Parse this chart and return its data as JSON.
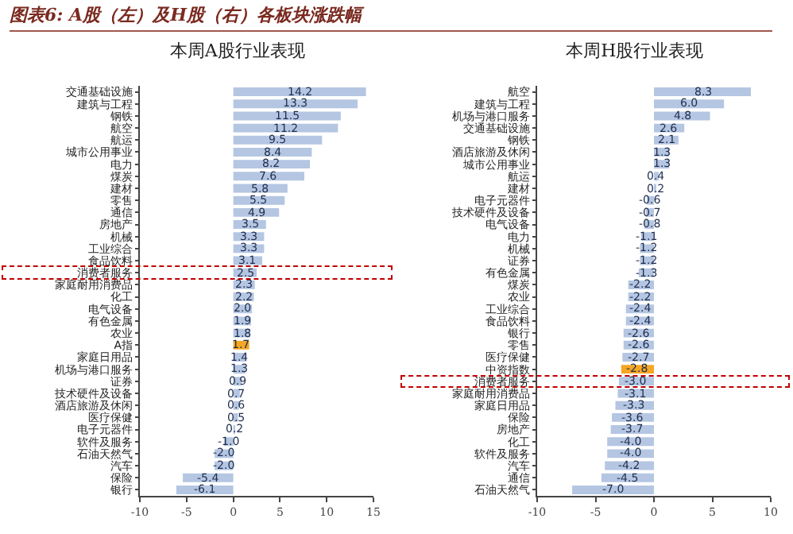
{
  "chart_data": [
    {
      "type": "bar",
      "orientation": "horizontal",
      "title": "本周A股行业表现",
      "annotations": [
        "图表6: A股（左）及H股（右）各板块涨跌幅"
      ],
      "categories": [
        "交通基础设施",
        "建筑与工程",
        "钢铁",
        "航空",
        "航运",
        "城市公用事业",
        "电力",
        "煤炭",
        "建材",
        "零售",
        "通信",
        "房地产",
        "机械",
        "工业综合",
        "食品饮料",
        "消费者服务",
        "家庭耐用消费品",
        "化工",
        "电气设备",
        "有色金属",
        "农业",
        "A指",
        "家庭日用品",
        "机场与港口服务",
        "证券",
        "技术硬件及设备",
        "酒店旅游及休闲",
        "医疗保健",
        "电子元器件",
        "软件及服务",
        "石油天然气",
        "汽车",
        "保险",
        "银行"
      ],
      "values": [
        14.2,
        13.3,
        11.5,
        11.2,
        9.5,
        8.4,
        8.2,
        7.6,
        5.8,
        5.5,
        4.9,
        3.5,
        3.3,
        3.3,
        3.1,
        2.5,
        2.3,
        2.2,
        2.0,
        1.9,
        1.8,
        1.7,
        1.4,
        1.3,
        0.9,
        0.7,
        0.6,
        0.5,
        0.2,
        -1.0,
        -2.0,
        -2.0,
        -5.4,
        -6.1
      ],
      "value_labels": [
        "14.2",
        "13.3",
        "11.5",
        "11.2",
        "9.5",
        "8.4",
        "8.2",
        "7.6",
        "5.8",
        "5.5",
        "4.9",
        "3.5",
        "3.3",
        "3.3",
        "3.1",
        "2.5",
        "2.3",
        "2.2",
        "2.0",
        "1.9",
        "1.8",
        "1.7",
        "1.4",
        "1.3",
        "0.9",
        "0.7",
        "0.6",
        "0.5",
        "0.2",
        "-1.0",
        "-2.0",
        "-2.0",
        "-5.4",
        "-6.1"
      ],
      "colors": [
        "#b4c6e2",
        "#b4c6e2",
        "#b4c6e2",
        "#b4c6e2",
        "#b4c6e2",
        "#b4c6e2",
        "#b4c6e2",
        "#b4c6e2",
        "#b4c6e2",
        "#b4c6e2",
        "#b4c6e2",
        "#b4c6e2",
        "#b4c6e2",
        "#b4c6e2",
        "#b4c6e2",
        "#b4c6e2",
        "#b4c6e2",
        "#b4c6e2",
        "#b4c6e2",
        "#b4c6e2",
        "#b4c6e2",
        "#f5a623",
        "#b4c6e2",
        "#b4c6e2",
        "#b4c6e2",
        "#b4c6e2",
        "#b4c6e2",
        "#b4c6e2",
        "#b4c6e2",
        "#b4c6e2",
        "#b4c6e2",
        "#b4c6e2",
        "#b4c6e2",
        "#b4c6e2"
      ],
      "xlim": [
        -10,
        15
      ],
      "xticks": [
        -10,
        -5,
        0,
        5,
        10,
        15
      ]
    },
    {
      "type": "bar",
      "orientation": "horizontal",
      "title": "本周H股行业表现",
      "categories": [
        "航空",
        "建筑与工程",
        "机场与港口服务",
        "交通基础设施",
        "钢铁",
        "酒店旅游及休闲",
        "城市公用事业",
        "航运",
        "建材",
        "电子元器件",
        "技术硬件及设备",
        "电气设备",
        "电力",
        "机械",
        "证券",
        "有色金属",
        "煤炭",
        "农业",
        "工业综合",
        "食品饮料",
        "银行",
        "零售",
        "医疗保健",
        "中资指数",
        "消费者服务",
        "家庭耐用消费品",
        "家庭日用品",
        "保险",
        "房地产",
        "化工",
        "软件及服务",
        "汽车",
        "通信",
        "石油天然气"
      ],
      "values": [
        8.3,
        6.0,
        4.8,
        2.6,
        2.1,
        1.3,
        1.3,
        0.4,
        0.2,
        -0.6,
        -0.7,
        -0.8,
        -1.1,
        -1.2,
        -1.2,
        -1.3,
        -2.2,
        -2.2,
        -2.4,
        -2.4,
        -2.6,
        -2.6,
        -2.7,
        -2.8,
        -3.0,
        -3.1,
        -3.3,
        -3.6,
        -3.7,
        -4.0,
        -4.0,
        -4.2,
        -4.5,
        -7.0
      ],
      "value_labels": [
        "8.3",
        "6.0",
        "4.8",
        "2.6",
        "2.1",
        "1.3",
        "1.3",
        "0.4",
        "0.2",
        "-0.6",
        "-0.7",
        "-0.8",
        "-1.1",
        "-1.2",
        "-1.2",
        "-1.3",
        "-2.2",
        "-2.2",
        "-2.4",
        "-2.4",
        "-2.6",
        "-2.6",
        "-2.7",
        "-2.8",
        "-3.0",
        "-3.1",
        "-3.3",
        "-3.6",
        "-3.7",
        "-4.0",
        "-4.0",
        "-4.2",
        "-4.5",
        "-7.0"
      ],
      "colors": [
        "#b4c6e2",
        "#b4c6e2",
        "#b4c6e2",
        "#b4c6e2",
        "#b4c6e2",
        "#b4c6e2",
        "#b4c6e2",
        "#b4c6e2",
        "#b4c6e2",
        "#b4c6e2",
        "#b4c6e2",
        "#b4c6e2",
        "#b4c6e2",
        "#b4c6e2",
        "#b4c6e2",
        "#b4c6e2",
        "#b4c6e2",
        "#b4c6e2",
        "#b4c6e2",
        "#b4c6e2",
        "#b4c6e2",
        "#b4c6e2",
        "#b4c6e2",
        "#f5a623",
        "#b4c6e2",
        "#b4c6e2",
        "#b4c6e2",
        "#b4c6e2",
        "#b4c6e2",
        "#b4c6e2",
        "#b4c6e2",
        "#b4c6e2",
        "#b4c6e2",
        "#b4c6e2"
      ],
      "xlim": [
        -10,
        10
      ],
      "xticks": [
        -10,
        -5,
        0,
        5,
        10
      ]
    }
  ]
}
